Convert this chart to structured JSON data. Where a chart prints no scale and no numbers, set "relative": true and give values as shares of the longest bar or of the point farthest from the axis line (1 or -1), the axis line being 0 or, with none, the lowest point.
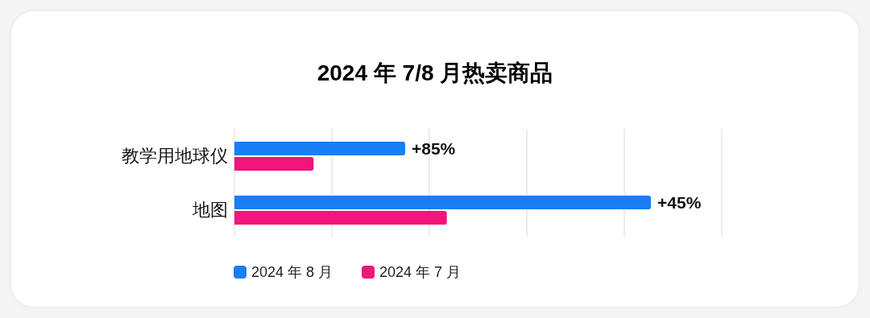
{
  "chart_data": {
    "type": "bar",
    "orientation": "horizontal",
    "relative": true,
    "title": "2024 年 7/8 月热卖商品",
    "categories": [
      "教学用地球仪",
      "地图"
    ],
    "series": [
      {
        "name": "2024 年 8 月",
        "color": "#1a7ef5",
        "values": [
          0.41,
          1
        ]
      },
      {
        "name": "2024 年 7 月",
        "color": "#f2157b",
        "values": [
          0.19,
          0.51
        ]
      }
    ],
    "annotations": [
      "+85%",
      "+45%"
    ],
    "grid": "x",
    "legend": "bottom"
  }
}
